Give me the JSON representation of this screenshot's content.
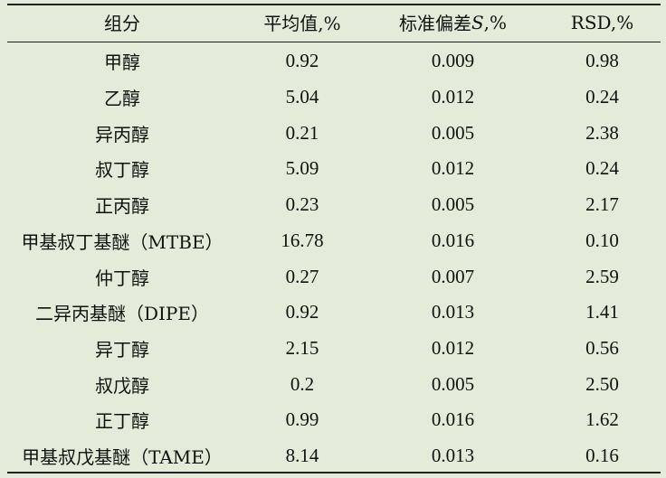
{
  "table": {
    "headers": {
      "component": "组分",
      "mean": "平均值,%",
      "std_prefix": "标准偏差 ",
      "std_symbol": "S",
      "std_suffix": ",%",
      "rsd": "RSD,%"
    },
    "rows": [
      {
        "component": "甲醇",
        "mean": "0.92",
        "std": "0.009",
        "rsd": "0.98"
      },
      {
        "component": "乙醇",
        "mean": "5.04",
        "std": "0.012",
        "rsd": "0.24"
      },
      {
        "component": "异丙醇",
        "mean": "0.21",
        "std": "0.005",
        "rsd": "2.38"
      },
      {
        "component": "叔丁醇",
        "mean": "5.09",
        "std": "0.012",
        "rsd": "0.24"
      },
      {
        "component": "正丙醇",
        "mean": "0.23",
        "std": "0.005",
        "rsd": "2.17"
      },
      {
        "component": "甲基叔丁基醚（MTBE）",
        "mean": "16.78",
        "std": "0.016",
        "rsd": "0.10"
      },
      {
        "component": "仲丁醇",
        "mean": "0.27",
        "std": "0.007",
        "rsd": "2.59"
      },
      {
        "component": "二异丙基醚（DIPE）",
        "mean": "0.92",
        "std": "0.013",
        "rsd": "1.41"
      },
      {
        "component": "异丁醇",
        "mean": "2.15",
        "std": "0.012",
        "rsd": "0.56"
      },
      {
        "component": "叔戊醇",
        "mean": "0.2",
        "std": "0.005",
        "rsd": "2.50"
      },
      {
        "component": "正丁醇",
        "mean": "0.99",
        "std": "0.016",
        "rsd": "1.62"
      },
      {
        "component": "甲基叔戊基醚（TAME）",
        "mean": "8.14",
        "std": "0.013",
        "rsd": "0.16"
      }
    ]
  },
  "colors": {
    "background": "#e2ecd9",
    "rule": "#222222"
  }
}
